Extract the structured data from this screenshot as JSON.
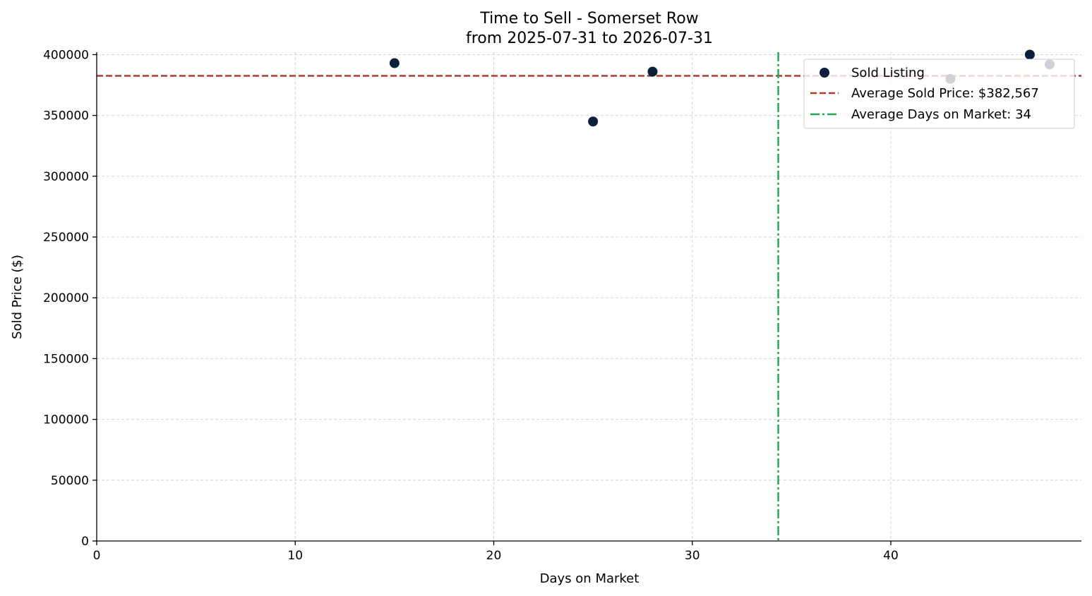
{
  "chart_data": {
    "type": "scatter",
    "title_line1": "Time to Sell - Somerset Row",
    "title_line2": "from 2025-07-31 to 2026-07-31",
    "xlabel": "Days on Market",
    "ylabel": "Sold Price ($)",
    "xlim": [
      0,
      49.6
    ],
    "ylim": [
      0,
      402000
    ],
    "x_ticks": [
      0,
      10,
      20,
      30,
      40
    ],
    "y_ticks": [
      0,
      50000,
      100000,
      150000,
      200000,
      250000,
      300000,
      350000,
      400000
    ],
    "x_tick_labels": [
      "0",
      "10",
      "20",
      "30",
      "40"
    ],
    "y_tick_labels": [
      "0",
      "50000",
      "100000",
      "150000",
      "200000",
      "250000",
      "300000",
      "350000",
      "400000"
    ],
    "grid": true,
    "legend_placement": "top-right",
    "series": [
      {
        "name": "Sold Listing",
        "color": "#0b1f3a",
        "points": [
          {
            "x": 15,
            "y": 393000
          },
          {
            "x": 25,
            "y": 345000
          },
          {
            "x": 28,
            "y": 386000
          },
          {
            "x": 43,
            "y": 380000
          },
          {
            "x": 47,
            "y": 400000
          },
          {
            "x": 48,
            "y": 392000
          }
        ]
      }
    ],
    "average_price": {
      "label": "Average Sold Price: $382,567",
      "value": 382567,
      "color": "#b03a2e"
    },
    "average_days": {
      "label": "Average Days on Market: 34",
      "value": 34.33,
      "color": "#27a55a"
    }
  }
}
